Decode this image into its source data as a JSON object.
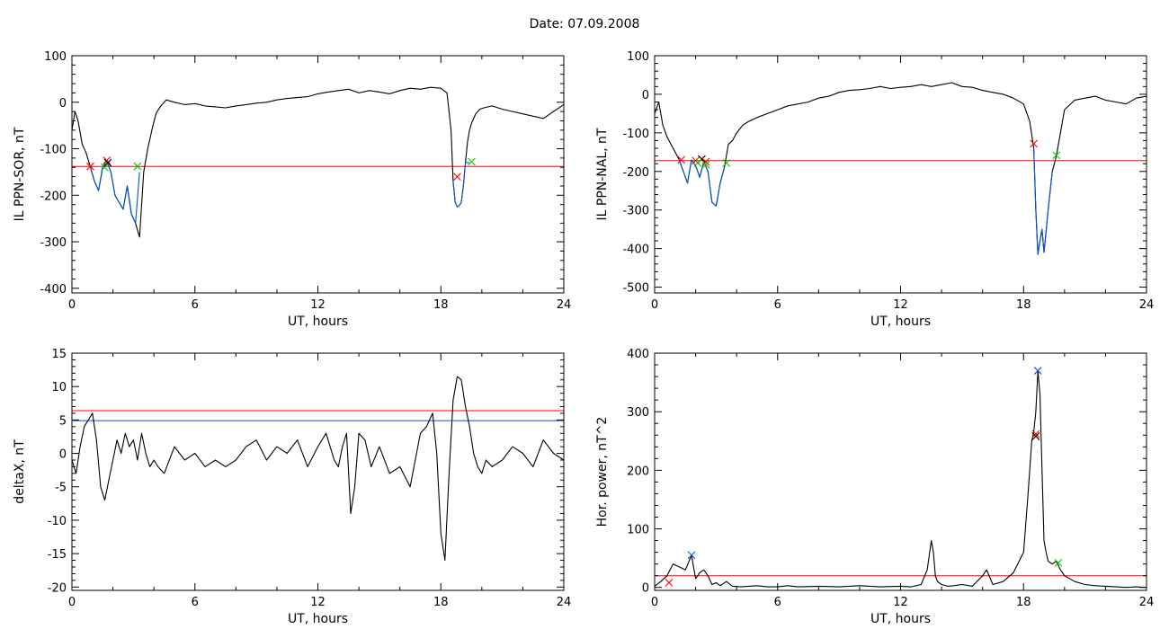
{
  "page_title": "Date:  07.09.2008",
  "chart_data": [
    {
      "id": "il-sor",
      "type": "line",
      "ylabel": "IL PPN-SOR, nT",
      "xlabel": "UT, hours",
      "xlim": [
        0,
        24
      ],
      "ylim": [
        -410,
        100
      ],
      "xticks": [
        0,
        6,
        12,
        18,
        24
      ],
      "yticks": [
        100,
        0,
        -100,
        -200,
        -300,
        -400
      ],
      "threshold": {
        "y": -138,
        "color": "#ff0000"
      },
      "series": [
        {
          "color": "#000000",
          "x": [
            0,
            0.15,
            0.3,
            0.5,
            0.7,
            0.9,
            1.1,
            1.3,
            1.5,
            1.7,
            1.9,
            2.1,
            2.3,
            2.5,
            2.7,
            2.9,
            3.1,
            3.3,
            3.5,
            3.7,
            3.9,
            4.1,
            4.3,
            4.6,
            5,
            5.5,
            6,
            6.5,
            7,
            7.5,
            8,
            8.5,
            9,
            9.5,
            10,
            10.5,
            11,
            11.5,
            12,
            12.5,
            13,
            13.5,
            14,
            14.5,
            15,
            15.5,
            16,
            16.5,
            17,
            17.5,
            18,
            18.3,
            18.5,
            18.6,
            18.7,
            18.8,
            18.9,
            19.0,
            19.1,
            19.2,
            19.3,
            19.4,
            19.5,
            19.6,
            19.7,
            19.9,
            20.1,
            20.5,
            21,
            21.5,
            22,
            22.5,
            23,
            23.5,
            24
          ],
          "y": [
            -60,
            -20,
            -40,
            -90,
            -110,
            -140,
            -170,
            -190,
            -140,
            -125,
            -150,
            -200,
            -215,
            -230,
            -180,
            -240,
            -260,
            -290,
            -150,
            -100,
            -60,
            -25,
            -10,
            5,
            0,
            -5,
            -3,
            -8,
            -10,
            -12,
            -8,
            -5,
            -2,
            0,
            5,
            8,
            10,
            12,
            18,
            22,
            25,
            28,
            20,
            25,
            22,
            18,
            25,
            30,
            28,
            32,
            30,
            20,
            -60,
            -170,
            -215,
            -225,
            -222,
            -215,
            -180,
            -130,
            -85,
            -60,
            -45,
            -35,
            -25,
            -15,
            -12,
            -8,
            -15,
            -20,
            -25,
            -30,
            -35,
            -20,
            -5
          ]
        },
        {
          "color": "#0055cc",
          "x": [
            0.9,
            1.1,
            1.3,
            1.5,
            1.7,
            1.9,
            2.1,
            2.3,
            2.5,
            2.7,
            2.9,
            3.1,
            3.3
          ],
          "y": [
            -140,
            -170,
            -190,
            -140,
            -125,
            -150,
            -200,
            -215,
            -230,
            -180,
            -240,
            -260,
            -150
          ]
        },
        {
          "color": "#0055cc",
          "x": [
            18.6,
            18.7,
            18.8,
            18.9,
            19.0,
            19.1,
            19.2,
            19.4
          ],
          "y": [
            -170,
            -215,
            -225,
            -222,
            -215,
            -180,
            -130,
            -130
          ]
        }
      ],
      "markers": [
        {
          "x": 0.9,
          "y": -138,
          "color": "#ff0000"
        },
        {
          "x": 1.7,
          "y": -125,
          "color": "#ff0000"
        },
        {
          "x": 1.75,
          "y": -130,
          "color": "#000000"
        },
        {
          "x": 1.6,
          "y": -140,
          "color": "#00cc00"
        },
        {
          "x": 3.2,
          "y": -138,
          "color": "#00cc00"
        },
        {
          "x": 18.8,
          "y": -160,
          "color": "#ff0000"
        },
        {
          "x": 19.5,
          "y": -128,
          "color": "#00cc00"
        }
      ]
    },
    {
      "id": "il-nal",
      "type": "line",
      "ylabel": "IL PPN-NAL, nT",
      "xlabel": "UT, hours",
      "xlim": [
        0,
        24
      ],
      "ylim": [
        -515,
        100
      ],
      "xticks": [
        0,
        6,
        12,
        18,
        24
      ],
      "yticks": [
        100,
        0,
        -100,
        -200,
        -300,
        -400,
        -500
      ],
      "threshold": {
        "y": -172,
        "color": "#ff0000"
      },
      "series": [
        {
          "color": "#000000",
          "x": [
            0,
            0.2,
            0.4,
            0.6,
            0.8,
            1.0,
            1.2,
            1.4,
            1.6,
            1.8,
            2.0,
            2.2,
            2.4,
            2.6,
            2.8,
            3.0,
            3.2,
            3.4,
            3.6,
            3.8,
            4.0,
            4.3,
            4.6,
            5,
            5.5,
            6,
            6.5,
            7,
            7.5,
            8,
            8.5,
            9,
            9.5,
            10,
            10.5,
            11,
            11.5,
            12,
            12.5,
            13,
            13.5,
            14,
            14.5,
            15,
            15.5,
            16,
            16.5,
            17,
            17.5,
            18,
            18.3,
            18.5,
            18.6,
            18.7,
            18.8,
            18.9,
            19.0,
            19.2,
            19.4,
            19.6,
            19.8,
            20,
            20.5,
            21,
            21.5,
            22,
            22.5,
            23,
            23.5,
            24
          ],
          "y": [
            -50,
            -20,
            -80,
            -110,
            -130,
            -150,
            -170,
            -200,
            -230,
            -170,
            -185,
            -215,
            -175,
            -200,
            -280,
            -290,
            -230,
            -190,
            -130,
            -120,
            -100,
            -80,
            -70,
            -60,
            -50,
            -40,
            -30,
            -25,
            -20,
            -10,
            -5,
            5,
            10,
            12,
            15,
            20,
            15,
            18,
            20,
            25,
            20,
            25,
            30,
            20,
            18,
            10,
            5,
            0,
            -10,
            -25,
            -70,
            -140,
            -300,
            -415,
            -380,
            -350,
            -410,
            -300,
            -200,
            -160,
            -100,
            -40,
            -15,
            -10,
            -5,
            -15,
            -20,
            -25,
            -10,
            -5
          ]
        },
        {
          "color": "#0055cc",
          "x": [
            1.2,
            1.4,
            1.6,
            1.8,
            2.0,
            2.2,
            2.4,
            2.6,
            2.8,
            3.0,
            3.2,
            3.4
          ],
          "y": [
            -170,
            -200,
            -230,
            -170,
            -185,
            -215,
            -175,
            -200,
            -280,
            -290,
            -230,
            -190
          ]
        },
        {
          "color": "#0055cc",
          "x": [
            18.5,
            18.6,
            18.7,
            18.8,
            18.9,
            19.0,
            19.2,
            19.4
          ],
          "y": [
            -140,
            -300,
            -415,
            -380,
            -350,
            -410,
            -300,
            -200
          ]
        }
      ],
      "markers": [
        {
          "x": 1.3,
          "y": -170,
          "color": "#ff0000"
        },
        {
          "x": 2.0,
          "y": -172,
          "color": "#ff0000"
        },
        {
          "x": 2.3,
          "y": -168,
          "color": "#000000"
        },
        {
          "x": 2.5,
          "y": -175,
          "color": "#ff0000"
        },
        {
          "x": 2.1,
          "y": -178,
          "color": "#00cc00"
        },
        {
          "x": 2.5,
          "y": -182,
          "color": "#00cc00"
        },
        {
          "x": 3.5,
          "y": -178,
          "color": "#00cc00"
        },
        {
          "x": 18.5,
          "y": -128,
          "color": "#ff0000"
        },
        {
          "x": 19.6,
          "y": -158,
          "color": "#00cc00"
        }
      ]
    },
    {
      "id": "deltax",
      "type": "line",
      "ylabel": "deltaX, nT",
      "xlabel": "UT, hours",
      "xlim": [
        0,
        24
      ],
      "ylim": [
        -20.5,
        15
      ],
      "xticks": [
        0,
        6,
        12,
        18,
        24
      ],
      "yticks": [
        15,
        10,
        5,
        0,
        -5,
        -10,
        -15,
        -20
      ],
      "threshold_lines": [
        {
          "y": 6.4,
          "color": "#ff0000"
        },
        {
          "y": 4.9,
          "color": "#0055cc"
        }
      ],
      "series": [
        {
          "color": "#000000",
          "x": [
            0,
            0.2,
            0.4,
            0.6,
            0.8,
            1.0,
            1.2,
            1.4,
            1.6,
            1.8,
            2.0,
            2.2,
            2.4,
            2.6,
            2.8,
            3.0,
            3.2,
            3.4,
            3.6,
            3.8,
            4.0,
            4.2,
            4.5,
            5,
            5.5,
            6,
            6.5,
            7,
            7.5,
            8,
            8.5,
            9,
            9.5,
            10,
            10.5,
            11,
            11.5,
            12,
            12.4,
            12.8,
            13.0,
            13.2,
            13.4,
            13.6,
            13.8,
            14,
            14.3,
            14.6,
            15,
            15.5,
            16,
            16.5,
            17,
            17.3,
            17.6,
            17.8,
            18,
            18.2,
            18.4,
            18.6,
            18.8,
            19.0,
            19.2,
            19.4,
            19.6,
            19.8,
            20,
            20.2,
            20.5,
            21,
            21.5,
            22,
            22.5,
            23,
            23.5,
            24
          ],
          "y": [
            -1,
            -3,
            1,
            4,
            5,
            6,
            2,
            -5,
            -7,
            -4,
            -1,
            2,
            0,
            3,
            1,
            2,
            -1,
            3,
            0,
            -2,
            -1,
            -2,
            -3,
            1,
            -1,
            0,
            -2,
            -1,
            -2,
            -1,
            1,
            2,
            -1,
            1,
            0,
            2,
            -2,
            1,
            3,
            -1,
            -2,
            1,
            3,
            -9,
            -5,
            3,
            2,
            -2,
            1,
            -3,
            -2,
            -5,
            3,
            4,
            6,
            0,
            -12,
            -16,
            -3,
            8,
            11.5,
            11,
            7,
            4,
            0,
            -2,
            -3,
            -1,
            -2,
            -1,
            1,
            0,
            -2,
            2,
            0,
            -1
          ]
        }
      ]
    },
    {
      "id": "hor-power",
      "type": "line",
      "ylabel": "Hor. power, nT^2",
      "xlabel": "UT, hours",
      "xlim": [
        0,
        24
      ],
      "ylim": [
        -5,
        400
      ],
      "xticks": [
        0,
        6,
        12,
        18,
        24
      ],
      "yticks": [
        400,
        300,
        200,
        100,
        0
      ],
      "threshold": {
        "y": 20,
        "color": "#ff0000"
      },
      "series": [
        {
          "color": "#000000",
          "x": [
            0,
            0.3,
            0.6,
            0.9,
            1.2,
            1.5,
            1.8,
            2.0,
            2.2,
            2.4,
            2.6,
            2.8,
            3.0,
            3.2,
            3.5,
            3.8,
            4.2,
            4.6,
            5,
            5.5,
            6,
            6.5,
            7,
            8,
            9,
            10,
            11,
            12,
            12.5,
            13,
            13.3,
            13.5,
            13.6,
            13.7,
            13.8,
            14,
            14.3,
            14.6,
            15,
            15.5,
            16,
            16.2,
            16.5,
            17,
            17.5,
            18,
            18.2,
            18.4,
            18.5,
            18.6,
            18.7,
            18.8,
            18.9,
            19.0,
            19.1,
            19.2,
            19.4,
            19.6,
            19.8,
            20,
            20.5,
            21,
            21.5,
            22,
            22.5,
            23,
            23.5,
            24
          ],
          "y": [
            2,
            10,
            20,
            40,
            35,
            30,
            55,
            15,
            25,
            30,
            20,
            5,
            8,
            3,
            10,
            2,
            1,
            2,
            3,
            1,
            1,
            3,
            1,
            2,
            1,
            3,
            1,
            2,
            1,
            5,
            30,
            80,
            60,
            20,
            10,
            5,
            2,
            3,
            5,
            2,
            20,
            30,
            5,
            10,
            25,
            60,
            150,
            250,
            265,
            300,
            370,
            330,
            200,
            80,
            60,
            45,
            40,
            45,
            30,
            20,
            10,
            5,
            3,
            2,
            1,
            0,
            1,
            0
          ]
        }
      ],
      "markers": [
        {
          "x": 0.7,
          "y": 8,
          "color": "#ff0000"
        },
        {
          "x": 1.8,
          "y": 55,
          "color": "#0055cc"
        },
        {
          "x": 18.7,
          "y": 370,
          "color": "#0055cc"
        },
        {
          "x": 18.6,
          "y": 262,
          "color": "#ff0000"
        },
        {
          "x": 18.6,
          "y": 258,
          "color": "#000000"
        },
        {
          "x": 19.7,
          "y": 42,
          "color": "#00cc00"
        }
      ]
    }
  ]
}
